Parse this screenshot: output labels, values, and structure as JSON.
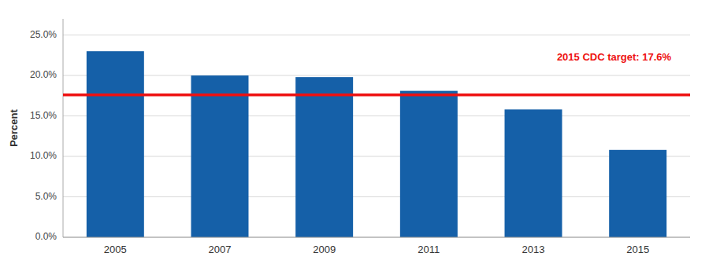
{
  "chart_data": {
    "type": "bar",
    "categories": [
      "2005",
      "2007",
      "2009",
      "2011",
      "2013",
      "2015"
    ],
    "values": [
      0.23,
      0.2,
      0.198,
      0.181,
      0.158,
      0.108
    ],
    "color": "#1560a8",
    "ylabel": "Percent",
    "ylim": [
      0,
      0.27
    ],
    "yticks": [
      {
        "value": 0.0,
        "label": "0.0%"
      },
      {
        "value": 0.05,
        "label": "5.0%"
      },
      {
        "value": 0.1,
        "label": "10.0%"
      },
      {
        "value": 0.15,
        "label": "15.0%"
      },
      {
        "value": 0.2,
        "label": "20.0%"
      },
      {
        "value": 0.25,
        "label": "25.0%"
      }
    ],
    "grid": true,
    "annotations": [
      {
        "text": "2015 CDC target: 17.6%",
        "value": 0.176,
        "color": "#ee1111"
      }
    ]
  }
}
